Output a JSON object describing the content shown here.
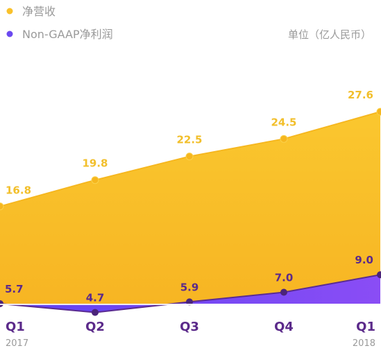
{
  "chart_data": {
    "type": "area",
    "unit": "单位（亿人民币）",
    "categories": [
      "Q1",
      "Q2",
      "Q3",
      "Q4",
      "Q1"
    ],
    "years": [
      "2017",
      "",
      "",
      "",
      "2018"
    ],
    "series": [
      {
        "name": "净营收",
        "color": "#f9c12b",
        "values": [
          16.8,
          19.8,
          22.5,
          24.5,
          27.6
        ],
        "labels": [
          "16.8",
          "19.8",
          "22.5",
          "24.5",
          "27.6"
        ]
      },
      {
        "name": "Non-GAAP净利润",
        "color": "#6b49f0",
        "values": [
          5.7,
          4.7,
          5.9,
          7.0,
          9.0
        ],
        "labels": [
          "5.7",
          "4.7",
          "5.9",
          "7.0",
          "9.0"
        ]
      }
    ],
    "ylim": [
      0,
      30
    ],
    "grid": "vertical dashed lines",
    "legend": "top-left"
  }
}
